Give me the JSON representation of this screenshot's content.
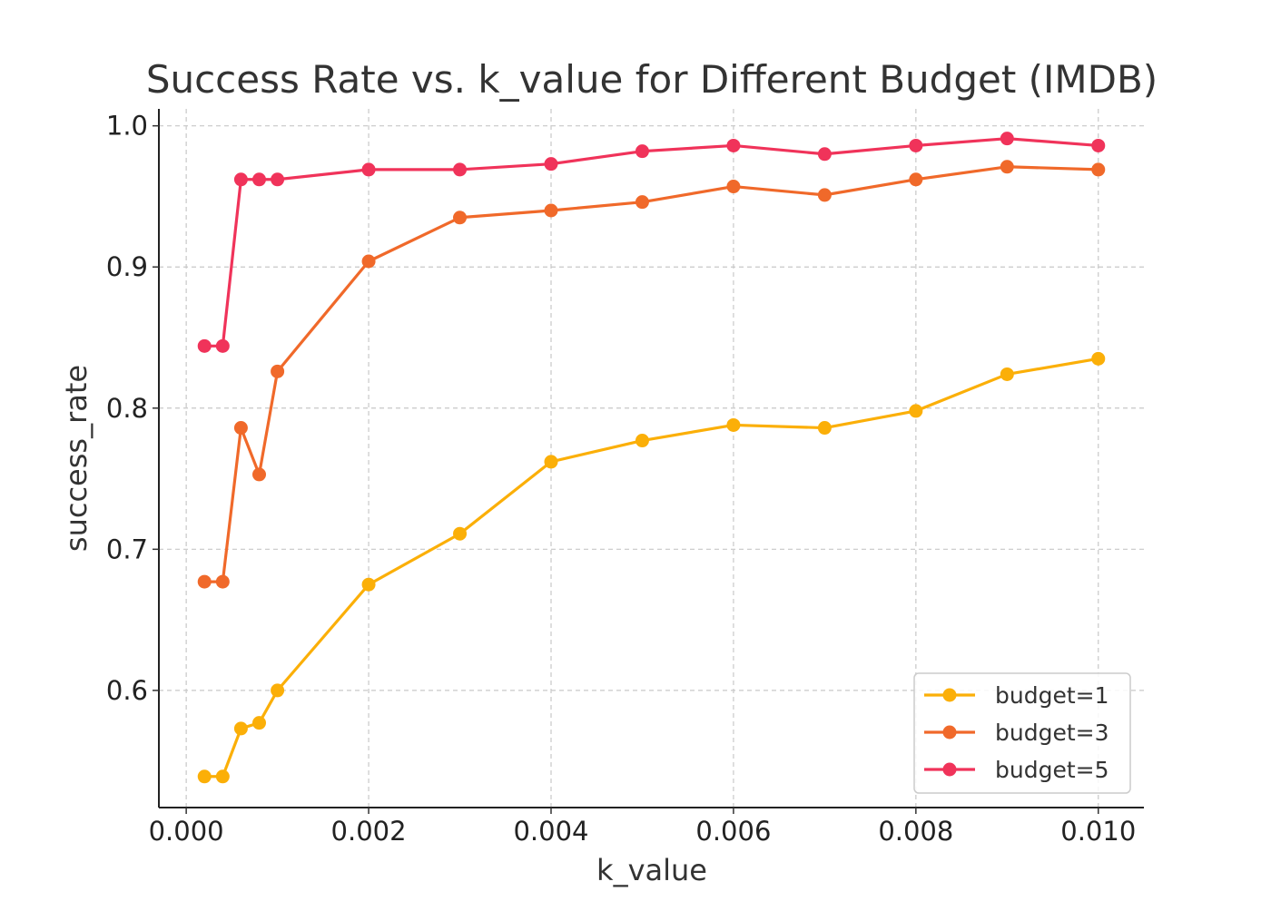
{
  "chart_data": {
    "type": "line",
    "title": "Success Rate vs. k_value for Different Budget (IMDB)",
    "xlabel": "k_value",
    "ylabel": "success_rate",
    "xlim": [
      -0.0003,
      0.0105
    ],
    "ylim": [
      0.517,
      1.012
    ],
    "xticks": [
      0.0,
      0.002,
      0.004,
      0.006,
      0.008,
      0.01
    ],
    "xtick_labels": [
      "0.000",
      "0.002",
      "0.004",
      "0.006",
      "0.008",
      "0.010"
    ],
    "yticks": [
      0.6,
      0.7,
      0.8,
      0.9,
      1.0
    ],
    "ytick_labels": [
      "0.6",
      "0.7",
      "0.8",
      "0.9",
      "1.0"
    ],
    "grid": true,
    "legend_position": "lower-right",
    "x": [
      0.0002,
      0.0004,
      0.0006,
      0.0008,
      0.001,
      0.002,
      0.003,
      0.004,
      0.005,
      0.006,
      0.007,
      0.008,
      0.009,
      0.01
    ],
    "series": [
      {
        "name": "budget=1",
        "color": "#FBAF08",
        "values": [
          0.539,
          0.539,
          0.573,
          0.577,
          0.6,
          0.675,
          0.711,
          0.762,
          0.777,
          0.788,
          0.786,
          0.798,
          0.824,
          0.835
        ]
      },
      {
        "name": "budget=3",
        "color": "#F0692A",
        "values": [
          0.677,
          0.677,
          0.786,
          0.753,
          0.826,
          0.904,
          0.935,
          0.94,
          0.946,
          0.957,
          0.951,
          0.962,
          0.971,
          0.969
        ]
      },
      {
        "name": "budget=5",
        "color": "#F0335A",
        "values": [
          0.844,
          0.844,
          0.962,
          0.962,
          0.962,
          0.969,
          0.969,
          0.973,
          0.982,
          0.986,
          0.98,
          0.986,
          0.991,
          0.986
        ]
      }
    ]
  }
}
